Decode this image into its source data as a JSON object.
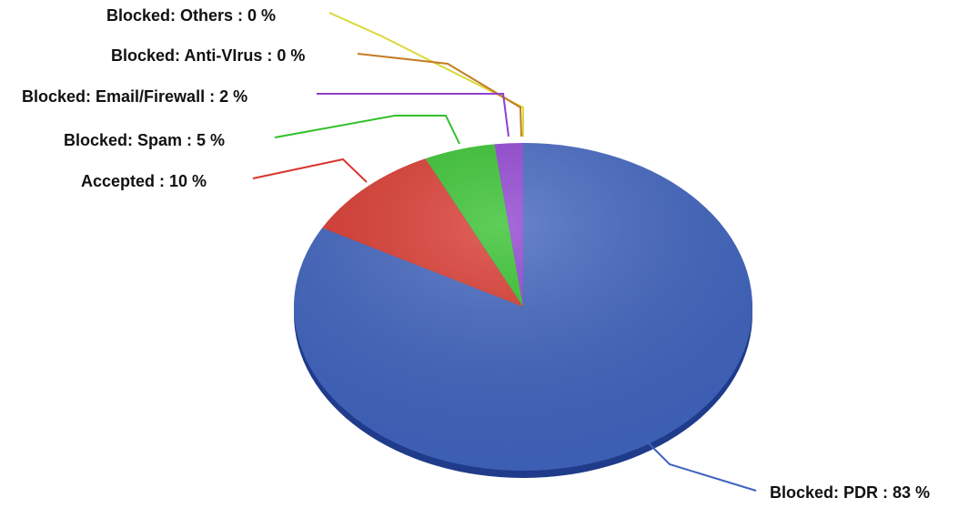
{
  "chart_data": {
    "type": "pie",
    "title": "",
    "slices": [
      {
        "label": "Blocked: PDR : 83 %",
        "value": 83,
        "color": "#3f63be"
      },
      {
        "label": "Accepted : 10 %",
        "value": 10,
        "color": "#d8362c"
      },
      {
        "label": "Blocked: Spam : 5 %",
        "value": 5,
        "color": "#31c02a"
      },
      {
        "label": "Blocked: Email/Firewall : 2 %",
        "value": 2,
        "color": "#8e3fd0"
      },
      {
        "label": "Blocked: Anti-VIrus : 0 %",
        "value": 0,
        "color": "#c47a22"
      },
      {
        "label": "Blocked: Others : 0 %",
        "value": 0,
        "color": "#d9d93a"
      }
    ],
    "legend": "none (leader-line labels)"
  }
}
